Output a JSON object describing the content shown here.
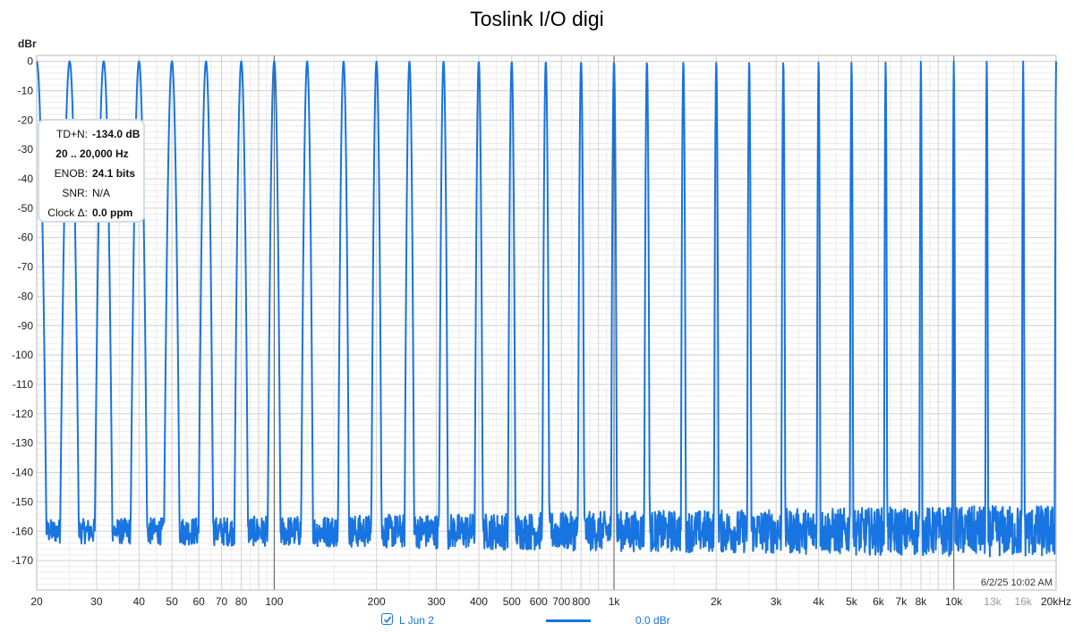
{
  "chart_data": {
    "type": "line",
    "title": "Toslink I/O digi",
    "ylabel": "dBr",
    "xlabel": "",
    "x_scale": "log",
    "xlim": [
      20,
      20000
    ],
    "ylim": [
      -180,
      2
    ],
    "grid": true,
    "x_tick_labels": [
      {
        "value": 20,
        "label": "20",
        "style": "major"
      },
      {
        "value": 30,
        "label": "30",
        "style": "major"
      },
      {
        "value": 40,
        "label": "40",
        "style": "major"
      },
      {
        "value": 50,
        "label": "50",
        "style": "major"
      },
      {
        "value": 60,
        "label": "60",
        "style": "major"
      },
      {
        "value": 70,
        "label": "70",
        "style": "major"
      },
      {
        "value": 80,
        "label": "80",
        "style": "major"
      },
      {
        "value": 100,
        "label": "100",
        "style": "major"
      },
      {
        "value": 200,
        "label": "200",
        "style": "major"
      },
      {
        "value": 300,
        "label": "300",
        "style": "major"
      },
      {
        "value": 400,
        "label": "400",
        "style": "major"
      },
      {
        "value": 500,
        "label": "500",
        "style": "major"
      },
      {
        "value": 600,
        "label": "600",
        "style": "major"
      },
      {
        "value": 700,
        "label": "700",
        "style": "major"
      },
      {
        "value": 800,
        "label": "800",
        "style": "major"
      },
      {
        "value": 1000,
        "label": "1k",
        "style": "major"
      },
      {
        "value": 2000,
        "label": "2k",
        "style": "major"
      },
      {
        "value": 3000,
        "label": "3k",
        "style": "major"
      },
      {
        "value": 4000,
        "label": "4k",
        "style": "major"
      },
      {
        "value": 5000,
        "label": "5k",
        "style": "major"
      },
      {
        "value": 6000,
        "label": "6k",
        "style": "major"
      },
      {
        "value": 7000,
        "label": "7k",
        "style": "major"
      },
      {
        "value": 8000,
        "label": "8k",
        "style": "major"
      },
      {
        "value": 10000,
        "label": "10k",
        "style": "major"
      },
      {
        "value": 13000,
        "label": "13k",
        "style": "light"
      },
      {
        "value": 16000,
        "label": "16k",
        "style": "light"
      },
      {
        "value": 20000,
        "label": "20kHz",
        "style": "major"
      }
    ],
    "y_ticks": [
      0,
      -10,
      -20,
      -30,
      -40,
      -50,
      -60,
      -70,
      -80,
      -90,
      -100,
      -110,
      -120,
      -130,
      -140,
      -150,
      -160,
      -170
    ],
    "series": [
      {
        "name": "L Jun 2",
        "color": "#1874e0",
        "peak_frequencies_hz": [
          20,
          25,
          31.5,
          40,
          50,
          63,
          80,
          100,
          125,
          160,
          200,
          250,
          315,
          400,
          500,
          630,
          800,
          1000,
          1250,
          1600,
          2000,
          2500,
          3150,
          4000,
          5000,
          6300,
          8000,
          10000,
          12500,
          16000,
          20000
        ],
        "peak_level_dbr": 0,
        "noise_floor_dbr": -160,
        "noise_floor_range_dbr": [
          -175,
          -150
        ]
      }
    ]
  },
  "info_box": {
    "tdn_label": "TD+N:",
    "tdn_value": "-134.0 dB",
    "range": "20 .. 20,000 Hz",
    "enob_label": "ENOB:",
    "enob_value": "24.1 bits",
    "snr_label": "SNR:",
    "snr_value": "N/A",
    "clock_label": "Clock Δ:",
    "clock_value": "0.0 ppm"
  },
  "legend": {
    "series_name": "L Jun 2",
    "level": "0.0 dBr",
    "checked": true
  },
  "timestamp": "6/2/25 10:02 AM"
}
